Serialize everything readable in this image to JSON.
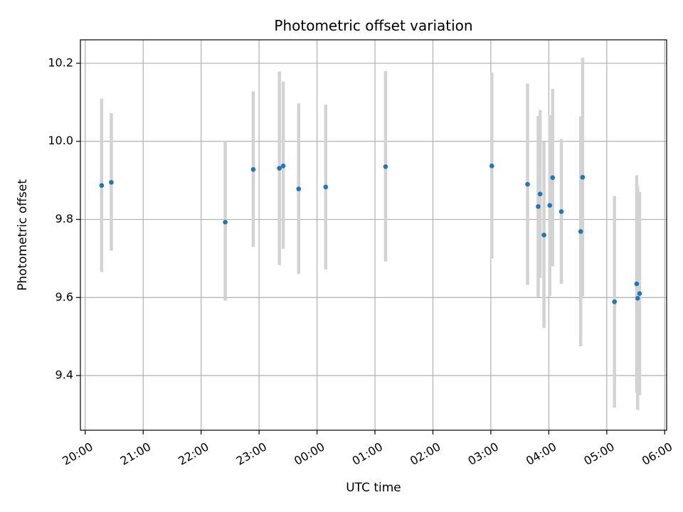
{
  "chart_data": {
    "type": "scatter",
    "title": "Photometric offset variation",
    "xlabel": "UTC time",
    "ylabel": "Photometric offset",
    "xlim": [
      "19:55",
      "06:02"
    ],
    "ylim": [
      9.26,
      10.26
    ],
    "grid": true,
    "x_ticks": [
      "20:00",
      "21:00",
      "22:00",
      "23:00",
      "00:00",
      "01:00",
      "02:00",
      "03:00",
      "04:00",
      "05:00",
      "06:00"
    ],
    "y_ticks": [
      9.4,
      9.6,
      9.8,
      10.0,
      10.2
    ],
    "y_tick_labels": [
      "9.4",
      "9.6",
      "9.8",
      "10.0",
      "10.2"
    ],
    "colors": {
      "point": "#1f77b4",
      "errorbar": "#d3d3d3",
      "grid": "#b0b0b0"
    },
    "series": [
      {
        "points": [
          {
            "x": "20:17",
            "y": 9.887,
            "low": 9.665,
            "high": 10.109
          },
          {
            "x": "20:27",
            "y": 9.895,
            "low": 9.72,
            "high": 10.072
          },
          {
            "x": "22:25",
            "y": 9.793,
            "low": 9.592,
            "high": 10.0
          },
          {
            "x": "22:54",
            "y": 9.928,
            "low": 9.73,
            "high": 10.128
          },
          {
            "x": "23:21",
            "y": 9.931,
            "low": 9.683,
            "high": 10.179
          },
          {
            "x": "23:25",
            "y": 9.937,
            "low": 9.725,
            "high": 10.153
          },
          {
            "x": "23:41",
            "y": 9.878,
            "low": 9.66,
            "high": 10.097
          },
          {
            "x": "00:09",
            "y": 9.883,
            "low": 9.672,
            "high": 10.094
          },
          {
            "x": "01:11",
            "y": 9.935,
            "low": 9.692,
            "high": 10.18
          },
          {
            "x": "03:01",
            "y": 9.937,
            "low": 9.7,
            "high": 10.176
          },
          {
            "x": "03:38",
            "y": 9.89,
            "low": 9.632,
            "high": 10.148
          },
          {
            "x": "03:49",
            "y": 9.833,
            "low": 9.601,
            "high": 10.065
          },
          {
            "x": "03:51",
            "y": 9.865,
            "low": 9.65,
            "high": 10.08
          },
          {
            "x": "03:55",
            "y": 9.76,
            "low": 9.522,
            "high": 10.0
          },
          {
            "x": "04:01",
            "y": 9.836,
            "low": 9.604,
            "high": 10.067
          },
          {
            "x": "04:04",
            "y": 9.907,
            "low": 9.68,
            "high": 10.134
          },
          {
            "x": "04:13",
            "y": 9.82,
            "low": 9.635,
            "high": 10.006
          },
          {
            "x": "04:33",
            "y": 9.769,
            "low": 9.475,
            "high": 10.064
          },
          {
            "x": "04:35",
            "y": 9.908,
            "low": 9.603,
            "high": 10.214
          },
          {
            "x": "05:08",
            "y": 9.589,
            "low": 9.318,
            "high": 9.86
          },
          {
            "x": "05:31",
            "y": 9.635,
            "low": 9.356,
            "high": 9.913
          },
          {
            "x": "05:32",
            "y": 9.598,
            "low": 9.312,
            "high": 9.885
          },
          {
            "x": "05:34",
            "y": 9.61,
            "low": 9.35,
            "high": 9.87
          }
        ]
      }
    ]
  }
}
